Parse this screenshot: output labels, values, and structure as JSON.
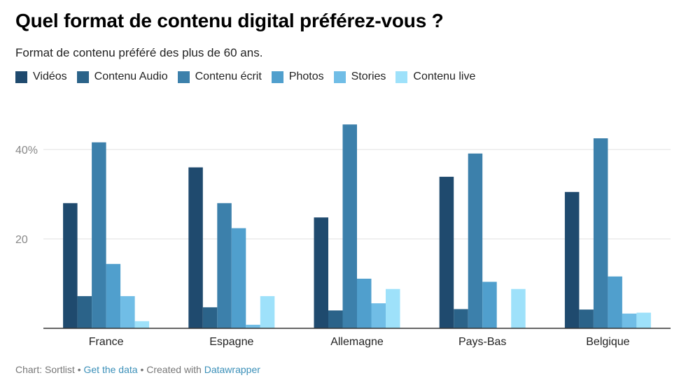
{
  "header": {
    "title": "Quel format de contenu digital préférez-vous ?",
    "subtitle": "Format de contenu préféré des plus de 60 ans."
  },
  "footer": {
    "source": "Chart: Sortlist",
    "sep1": " • ",
    "get_data": "Get the data",
    "sep2": " • Created with ",
    "tool": "Datawrapper"
  },
  "colors": {
    "grid": "#e2e2e2",
    "baseline": "#333333",
    "axis_text": "#888888",
    "category_text": "#222222"
  },
  "chart_data": {
    "type": "bar",
    "title": "Quel format de contenu digital préférez-vous ?",
    "subtitle": "Format de contenu préféré des plus de 60 ans.",
    "categories": [
      "France",
      "Espagne",
      "Allemagne",
      "Pays-Bas",
      "Belgique"
    ],
    "series": [
      {
        "name": "Vidéos",
        "color": "#1f4a6e",
        "values": [
          28.0,
          36.0,
          24.8,
          33.9,
          30.5
        ]
      },
      {
        "name": "Contenu Audio",
        "color": "#2b6389",
        "values": [
          7.2,
          4.7,
          4.0,
          4.3,
          4.2
        ]
      },
      {
        "name": "Contenu écrit",
        "color": "#3c80ab",
        "values": [
          41.6,
          28.0,
          45.6,
          39.1,
          42.5
        ]
      },
      {
        "name": "Photos",
        "color": "#509fcd",
        "values": [
          14.4,
          22.4,
          11.1,
          10.4,
          11.6
        ]
      },
      {
        "name": "Stories",
        "color": "#70bde6",
        "values": [
          7.2,
          0.8,
          5.6,
          0.0,
          3.3
        ]
      },
      {
        "name": "Contenu live",
        "color": "#9ee1fa",
        "values": [
          1.6,
          7.2,
          8.8,
          8.8,
          3.5
        ]
      }
    ],
    "yticks": [
      {
        "value": 20,
        "label": "20"
      },
      {
        "value": 40,
        "label": "40%"
      }
    ],
    "ylim": [
      0,
      50
    ],
    "grid": true,
    "legend": "top-left"
  }
}
